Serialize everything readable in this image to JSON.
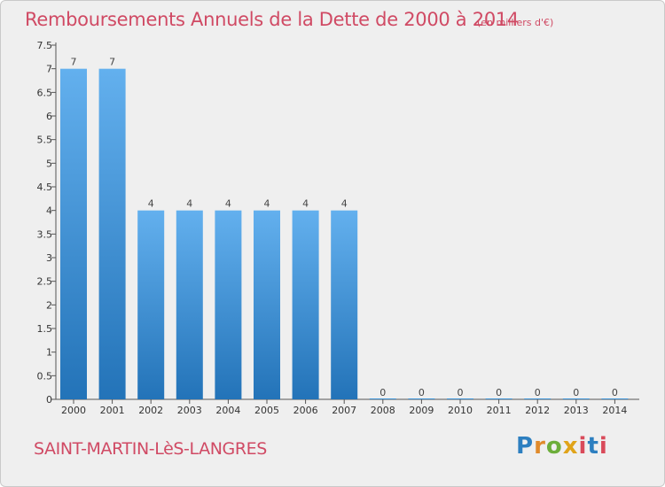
{
  "chart_data": {
    "type": "bar",
    "title": "Remboursements Annuels de la Dette de 2000 à 2014",
    "unit": "(en milliers d'€)",
    "categories": [
      "2000",
      "2001",
      "2002",
      "2003",
      "2004",
      "2005",
      "2006",
      "2007",
      "2008",
      "2009",
      "2010",
      "2011",
      "2012",
      "2013",
      "2014"
    ],
    "values": [
      7,
      7,
      4,
      4,
      4,
      4,
      4,
      4,
      0,
      0,
      0,
      0,
      0,
      0,
      0
    ],
    "data_labels": [
      "7",
      "7",
      "4",
      "4",
      "4",
      "4",
      "4",
      "4",
      "0",
      "0",
      "0",
      "0",
      "0",
      "0",
      "0"
    ],
    "ylim": [
      0,
      7.5
    ],
    "yticks": [
      "0",
      "0.5",
      "1",
      "1.5",
      "2",
      "2.5",
      "3",
      "3.5",
      "4",
      "4.5",
      "5",
      "5.5",
      "6",
      "6.5",
      "7",
      "7.5"
    ],
    "grid": false,
    "bar_color": "#3f94d7"
  },
  "footer": {
    "commune": "SAINT-MARTIN-LèS-LANGRES",
    "logo_parts": [
      "P",
      "r",
      "o",
      "x",
      "i",
      "t",
      "i"
    ]
  },
  "colors": {
    "title": "#d04a64",
    "bar": "#3f94d7",
    "background": "#efefef"
  }
}
